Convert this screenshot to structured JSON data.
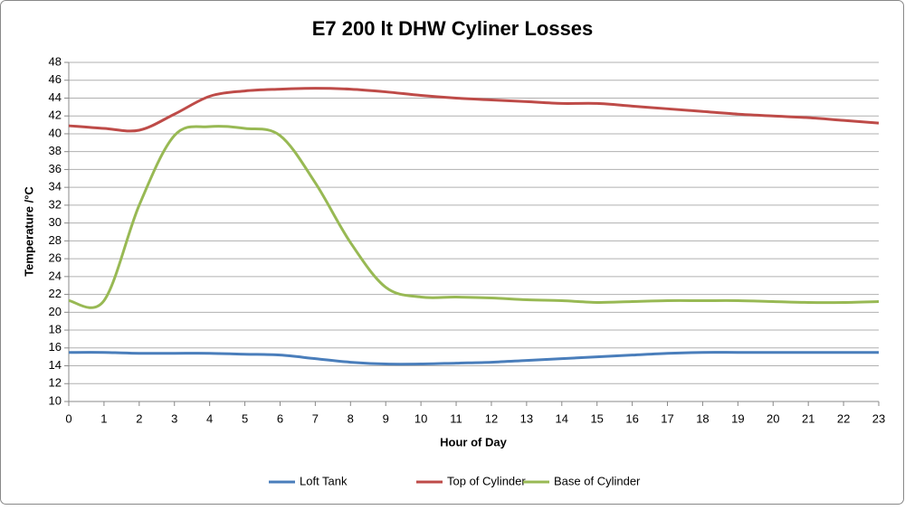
{
  "chart_data": {
    "type": "line",
    "title": "E7 200 lt DHW Cyliner Losses",
    "x_label": "Hour of Day",
    "y_label": "Temperature /°C",
    "x": [
      0,
      1,
      2,
      3,
      4,
      5,
      6,
      7,
      8,
      9,
      10,
      11,
      12,
      13,
      14,
      15,
      16,
      17,
      18,
      19,
      20,
      21,
      22,
      23
    ],
    "xlim": [
      0,
      23
    ],
    "xticks": [
      0,
      1,
      2,
      3,
      4,
      5,
      6,
      7,
      8,
      9,
      10,
      11,
      12,
      13,
      14,
      15,
      16,
      17,
      18,
      19,
      20,
      21,
      22,
      23
    ],
    "ylim": [
      10,
      48
    ],
    "yticks": [
      10,
      12,
      14,
      16,
      18,
      20,
      22,
      24,
      26,
      28,
      30,
      32,
      34,
      36,
      38,
      40,
      42,
      44,
      46,
      48
    ],
    "grid": true,
    "legend": "bottom",
    "series": [
      {
        "name": "Loft Tank",
        "color": "#4a7ebb",
        "values": [
          15.5,
          15.5,
          15.4,
          15.4,
          15.4,
          15.3,
          15.2,
          14.8,
          14.4,
          14.2,
          14.2,
          14.3,
          14.4,
          14.6,
          14.8,
          15.0,
          15.2,
          15.4,
          15.5,
          15.5,
          15.5,
          15.5,
          15.5,
          15.5
        ]
      },
      {
        "name": "Top of Cylinder",
        "color": "#be4b48",
        "values": [
          40.9,
          40.6,
          40.4,
          42.2,
          44.2,
          44.8,
          45.0,
          45.1,
          45.0,
          44.7,
          44.3,
          44.0,
          43.8,
          43.6,
          43.4,
          43.4,
          43.1,
          42.8,
          42.5,
          42.2,
          42.0,
          41.8,
          41.5,
          41.2
        ]
      },
      {
        "name": "Base of Cylinder",
        "color": "#98b954",
        "values": [
          21.3,
          21.3,
          32.0,
          39.8,
          40.8,
          40.6,
          39.8,
          34.5,
          27.8,
          22.8,
          21.7,
          21.7,
          21.6,
          21.4,
          21.3,
          21.1,
          21.2,
          21.3,
          21.3,
          21.3,
          21.2,
          21.1,
          21.1,
          21.2
        ]
      }
    ]
  }
}
